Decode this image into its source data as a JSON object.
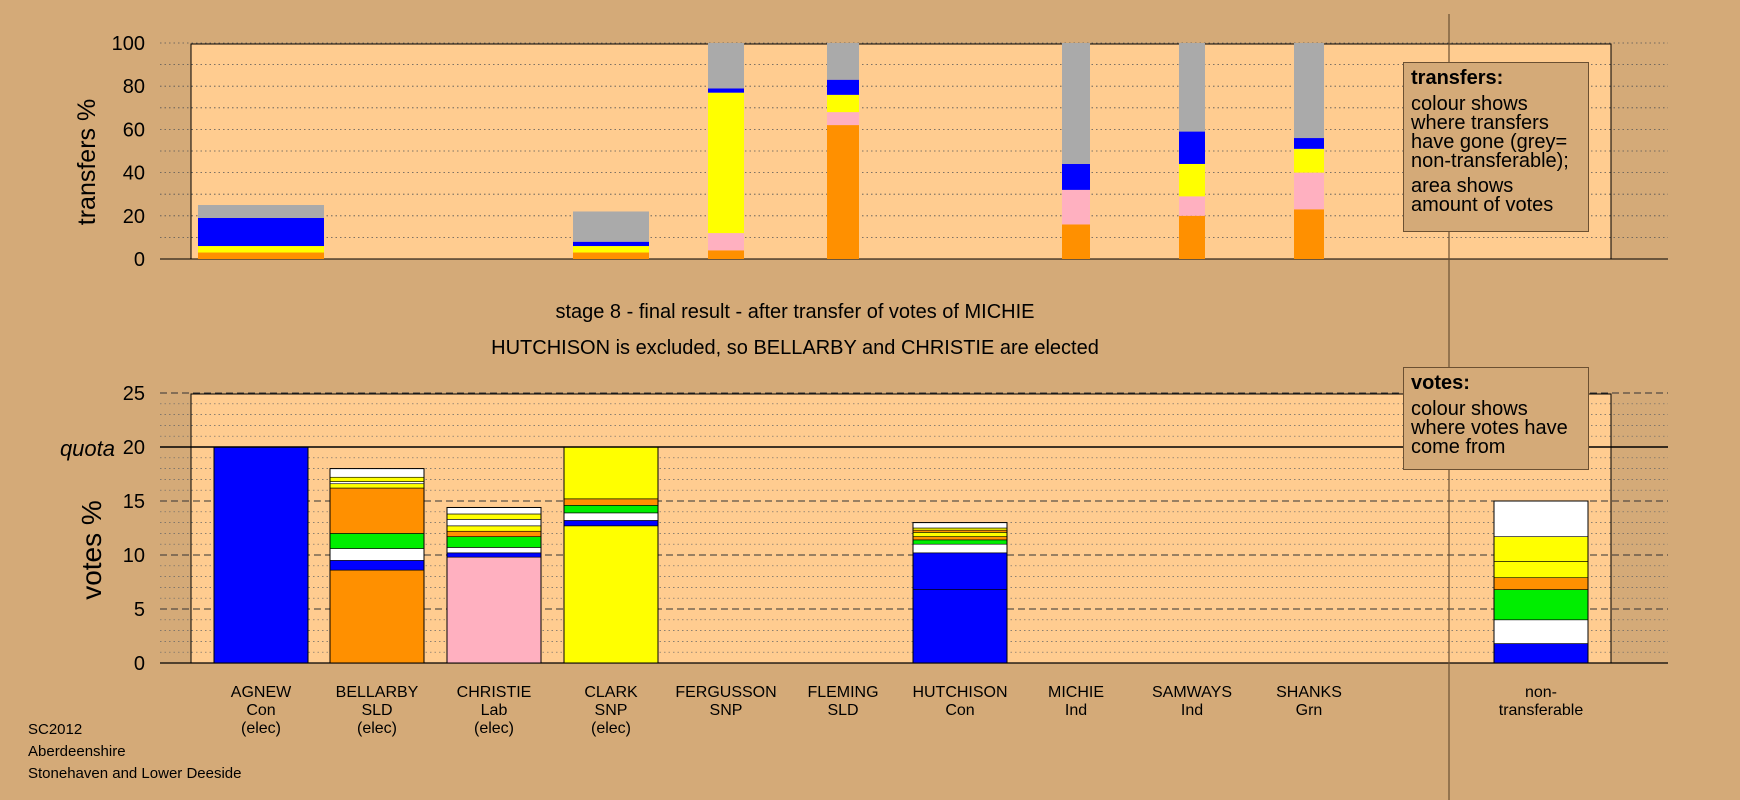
{
  "chart_data": [
    {
      "type": "bar",
      "stacked": true,
      "ylabel": "transfers %",
      "ylim": [
        0,
        100
      ],
      "yticks": [
        0,
        20,
        40,
        60,
        80,
        100
      ],
      "grid": "dotted horizontal lines every 10",
      "categories": [
        "AGNEW",
        "BELLARBY",
        "CHRISTIE",
        "CLARK",
        "FERGUSSON",
        "FLEMING",
        "HUTCHISON",
        "MICHIE",
        "SAMWAYS",
        "SHANKS"
      ],
      "series": [
        {
          "color": "#ff9000",
          "values": [
            3,
            0,
            0,
            3,
            4,
            62,
            0,
            16,
            20,
            23
          ]
        },
        {
          "color": "#ffb0c0",
          "values": [
            0,
            0,
            0,
            0,
            8,
            6,
            0,
            16,
            9,
            17
          ]
        },
        {
          "color": "#ffffff",
          "values": [
            0,
            0,
            0,
            0,
            0,
            0,
            0,
            0,
            0,
            0
          ]
        },
        {
          "color": "#ffff00",
          "values": [
            3,
            0,
            0,
            3,
            65,
            8,
            0,
            0,
            15,
            11
          ]
        },
        {
          "color": "#0000ff",
          "values": [
            13,
            0,
            0,
            2,
            2,
            7,
            0,
            12,
            15,
            5
          ]
        },
        {
          "color": "#aaaaaa",
          "values": [
            6,
            0,
            0,
            14,
            21,
            17,
            0,
            56,
            41,
            44
          ]
        }
      ]
    },
    {
      "type": "bar",
      "stacked": true,
      "ylabel": "votes %",
      "ylim": [
        0,
        25
      ],
      "yticks": [
        0,
        5,
        10,
        15,
        20,
        25
      ],
      "quota": 20,
      "quota_label": "quota",
      "grid": "dashed every 5, dotted every 1",
      "categories": [
        "AGNEW",
        "BELLARBY",
        "CHRISTIE",
        "CLARK",
        "FERGUSSON",
        "FLEMING",
        "HUTCHISON",
        "MICHIE",
        "SAMWAYS",
        "SHANKS",
        "non-transferable"
      ],
      "bars": [
        {
          "segments": [
            {
              "color": "#0000ff",
              "value": 20
            }
          ]
        },
        {
          "segments": [
            {
              "color": "#ff9000",
              "value": 8.6
            },
            {
              "color": "#0000ff",
              "value": 0.9
            },
            {
              "color": "#ffffff",
              "value": 1.1
            },
            {
              "color": "#00ee00",
              "value": 1.4
            },
            {
              "color": "#ff9000",
              "value": 4.2
            },
            {
              "color": "#ffff00",
              "value": 0.4
            },
            {
              "color": "#ffffff",
              "value": 0.2
            },
            {
              "color": "#ffff00",
              "value": 0.4
            },
            {
              "color": "#ffffff",
              "value": 0.8
            }
          ]
        },
        {
          "segments": [
            {
              "color": "#ffb0c0",
              "value": 9.8
            },
            {
              "color": "#0000ff",
              "value": 0.4
            },
            {
              "color": "#ffffff",
              "value": 0.5
            },
            {
              "color": "#00ee00",
              "value": 1.0
            },
            {
              "color": "#ff9000",
              "value": 0.5
            },
            {
              "color": "#ffff00",
              "value": 0.5
            },
            {
              "color": "#ffffff",
              "value": 0.6
            },
            {
              "color": "#ffff00",
              "value": 0.5
            },
            {
              "color": "#ffffff",
              "value": 0.6
            }
          ]
        },
        {
          "segments": [
            {
              "color": "#ffff00",
              "value": 12.7
            },
            {
              "color": "#0000ff",
              "value": 0.5
            },
            {
              "color": "#ffffff",
              "value": 0.7
            },
            {
              "color": "#00ee00",
              "value": 0.7
            },
            {
              "color": "#ff9000",
              "value": 0.6
            },
            {
              "color": "#ffff00",
              "value": 4.8
            }
          ]
        },
        {
          "segments": []
        },
        {
          "segments": []
        },
        {
          "segments": [
            {
              "color": "#0000ff",
              "value": 6.8
            },
            {
              "color": "#0000ff",
              "value": 3.4
            },
            {
              "color": "#ffffff",
              "value": 0.8
            },
            {
              "color": "#00ee00",
              "value": 0.4
            },
            {
              "color": "#ff9000",
              "value": 0.3
            },
            {
              "color": "#ffff00",
              "value": 0.4
            },
            {
              "color": "#ff9000",
              "value": 0.2
            },
            {
              "color": "#ffff00",
              "value": 0.2
            },
            {
              "color": "#ffffff",
              "value": 0.5
            }
          ]
        },
        {
          "segments": []
        },
        {
          "segments": []
        },
        {
          "segments": []
        },
        {
          "segments": [
            {
              "color": "#0000ff",
              "value": 1.8
            },
            {
              "color": "#ffffff",
              "value": 2.2
            },
            {
              "color": "#00ee00",
              "value": 2.8
            },
            {
              "color": "#ff9000",
              "value": 1.1
            },
            {
              "color": "#ffff00",
              "value": 1.5
            },
            {
              "color": "#ffff00",
              "value": 2.3
            },
            {
              "color": "#ffffff",
              "value": 3.3
            }
          ]
        }
      ]
    }
  ],
  "candidates": [
    {
      "name": "AGNEW",
      "party": "Con",
      "status": "(elec)"
    },
    {
      "name": "BELLARBY",
      "party": "SLD",
      "status": "(elec)"
    },
    {
      "name": "CHRISTIE",
      "party": "Lab",
      "status": "(elec)"
    },
    {
      "name": "CLARK",
      "party": "SNP",
      "status": "(elec)"
    },
    {
      "name": "FERGUSSON",
      "party": "SNP",
      "status": ""
    },
    {
      "name": "FLEMING",
      "party": "SLD",
      "status": ""
    },
    {
      "name": "HUTCHISON",
      "party": "Con",
      "status": ""
    },
    {
      "name": "MICHIE",
      "party": "Ind",
      "status": ""
    },
    {
      "name": "SAMWAYS",
      "party": "Ind",
      "status": ""
    },
    {
      "name": "SHANKS",
      "party": "Grn",
      "status": ""
    }
  ],
  "nontransferable_label": [
    "non-",
    "transferable"
  ],
  "stage_title": "stage 8 - final result - after transfer of votes of MICHIE",
  "stage_subtitle": "HUTCHISON is excluded, so BELLARBY and CHRISTIE are elected",
  "legend_transfers": {
    "title": "transfers:",
    "line1": "colour shows where transfers have gone (grey= non-transferable);",
    "line2": "area shows amount of votes"
  },
  "legend_votes": {
    "title": "votes:",
    "line1": "colour shows where votes have come from"
  },
  "footer": {
    "election": "SC2012",
    "council": "Aberdeenshire",
    "ward": "Stonehaven and Lower Deeside"
  }
}
